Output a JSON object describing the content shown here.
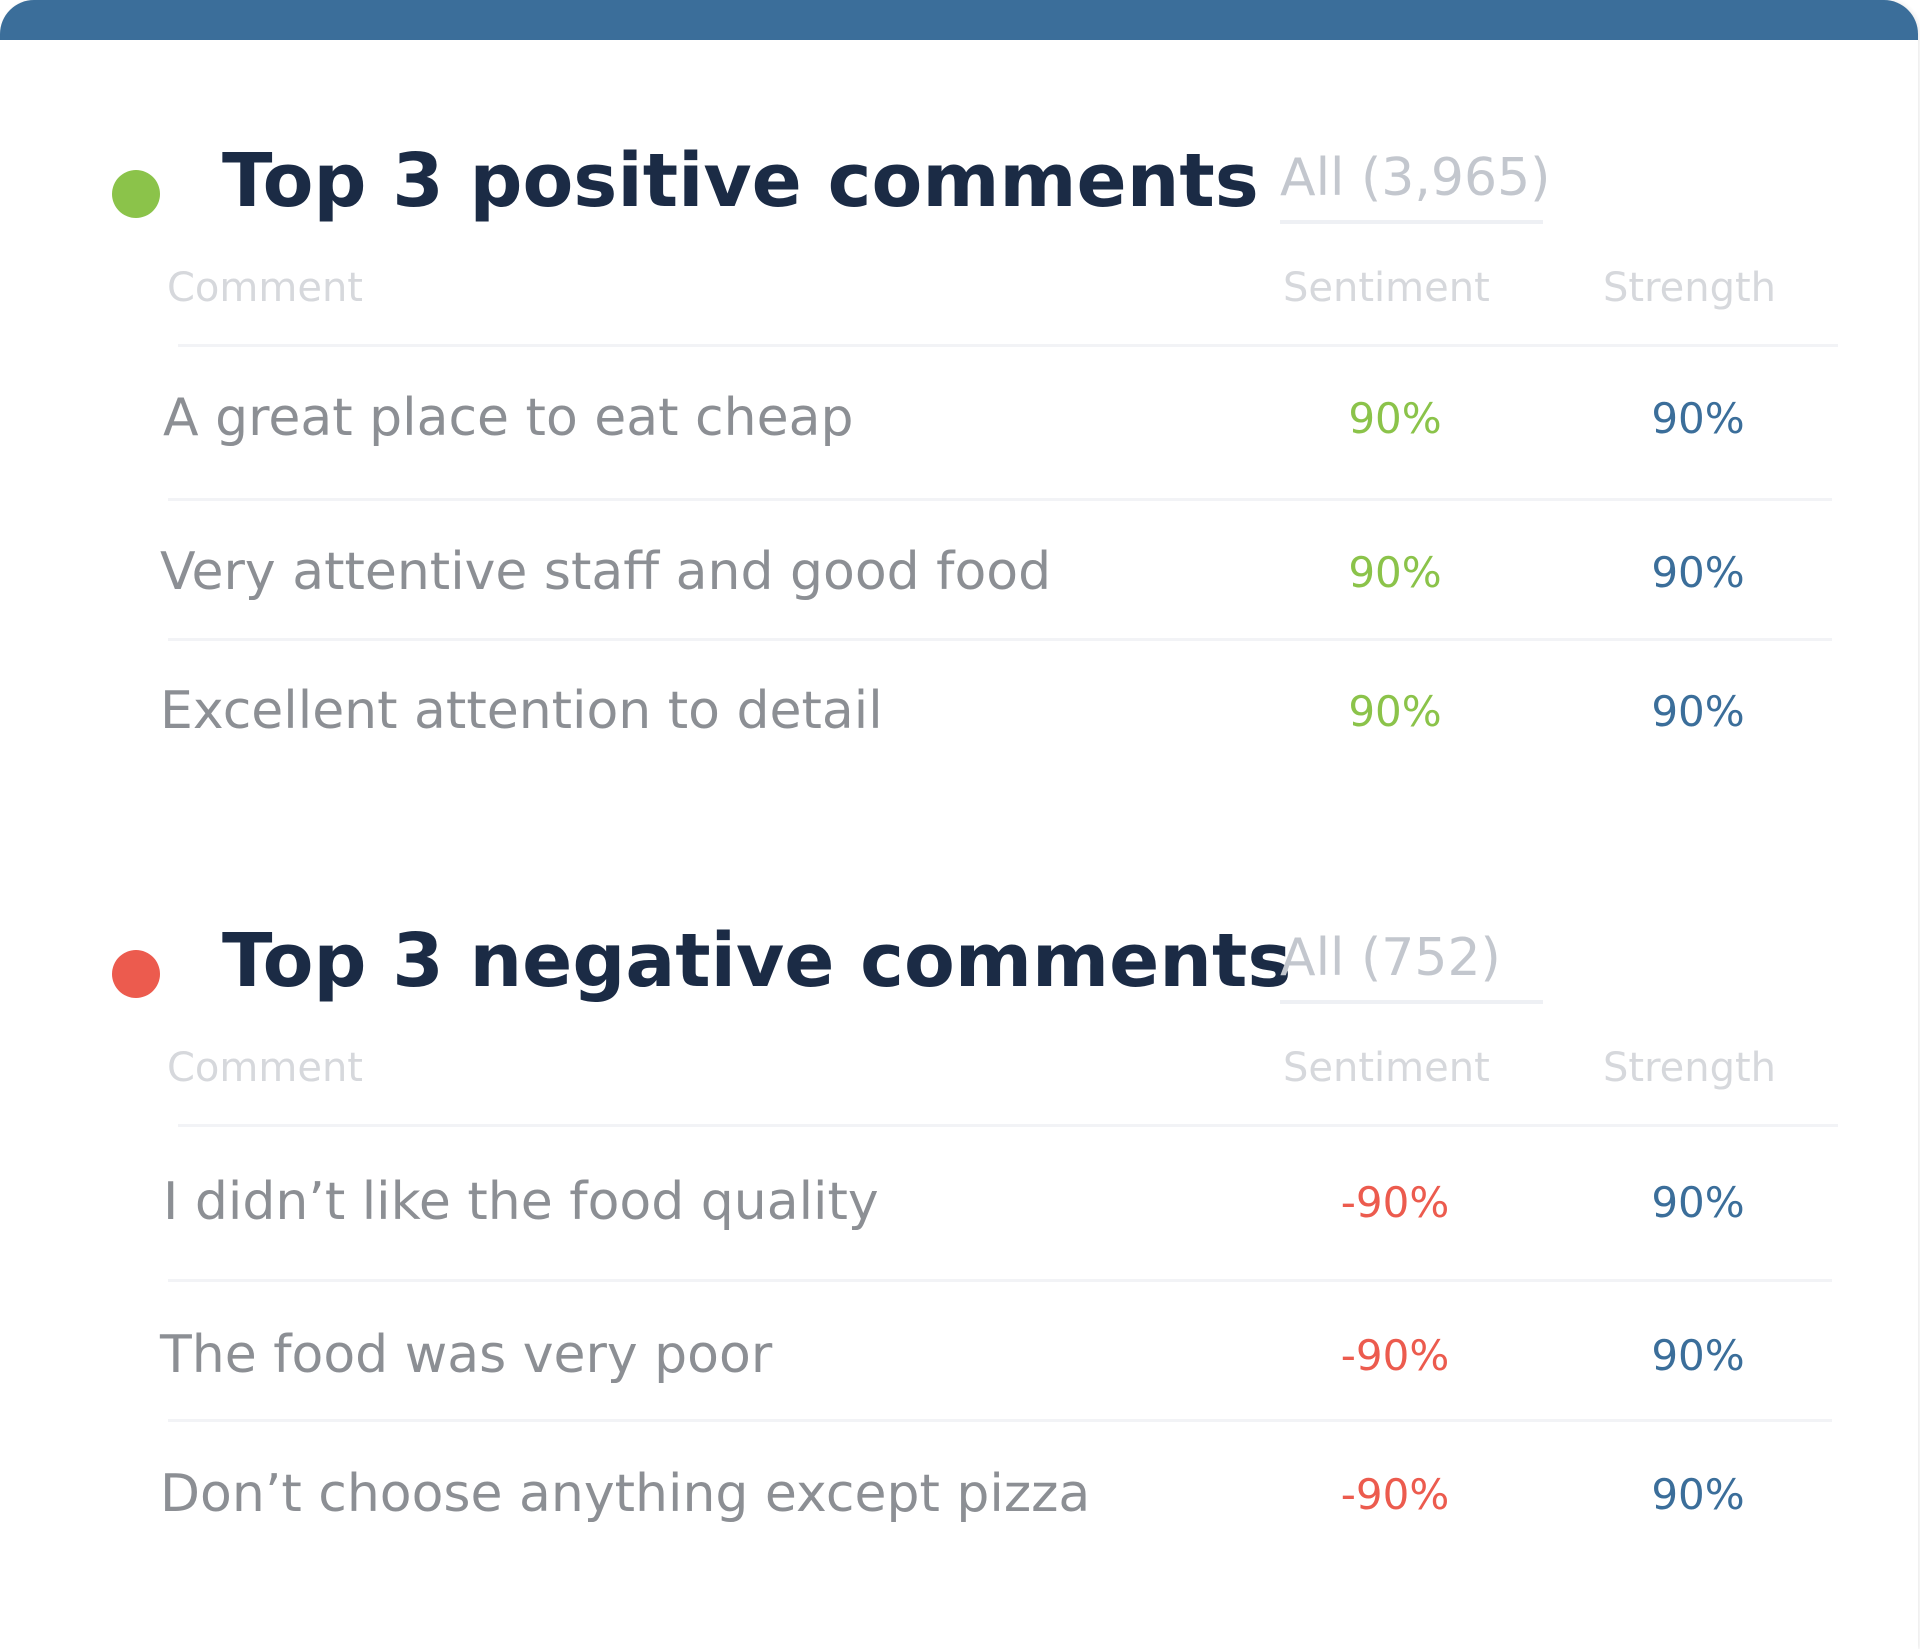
{
  "colors": {
    "accent": "#3b6e9a",
    "positive": "#8bc34a",
    "negative": "#ec5b4e",
    "title": "#1b2b45"
  },
  "positive": {
    "title": "Top 3 positive comments",
    "all_label": "All (3,965)",
    "dot_color": "#8bc34a",
    "columns": {
      "comment": "Comment",
      "sentiment": "Sentiment",
      "strength": "Strength"
    },
    "rows": [
      {
        "comment": "A great place to eat cheap",
        "sentiment": "90%",
        "strength": "90%"
      },
      {
        "comment": "Very attentive staff and good food",
        "sentiment": "90%",
        "strength": "90%"
      },
      {
        "comment": "Excellent attention to detail",
        "sentiment": "90%",
        "strength": "90%"
      }
    ]
  },
  "negative": {
    "title": "Top 3 negative comments",
    "all_label": "All (752)",
    "dot_color": "#ec5b4e",
    "columns": {
      "comment": "Comment",
      "sentiment": "Sentiment",
      "strength": "Strength"
    },
    "rows": [
      {
        "comment": "I didn’t like the food quality",
        "sentiment": "-90%",
        "strength": "90%"
      },
      {
        "comment": "The food was very poor",
        "sentiment": "-90%",
        "strength": "90%"
      },
      {
        "comment": "Don’t choose anything except pizza",
        "sentiment": "-90%",
        "strength": "90%"
      }
    ]
  }
}
